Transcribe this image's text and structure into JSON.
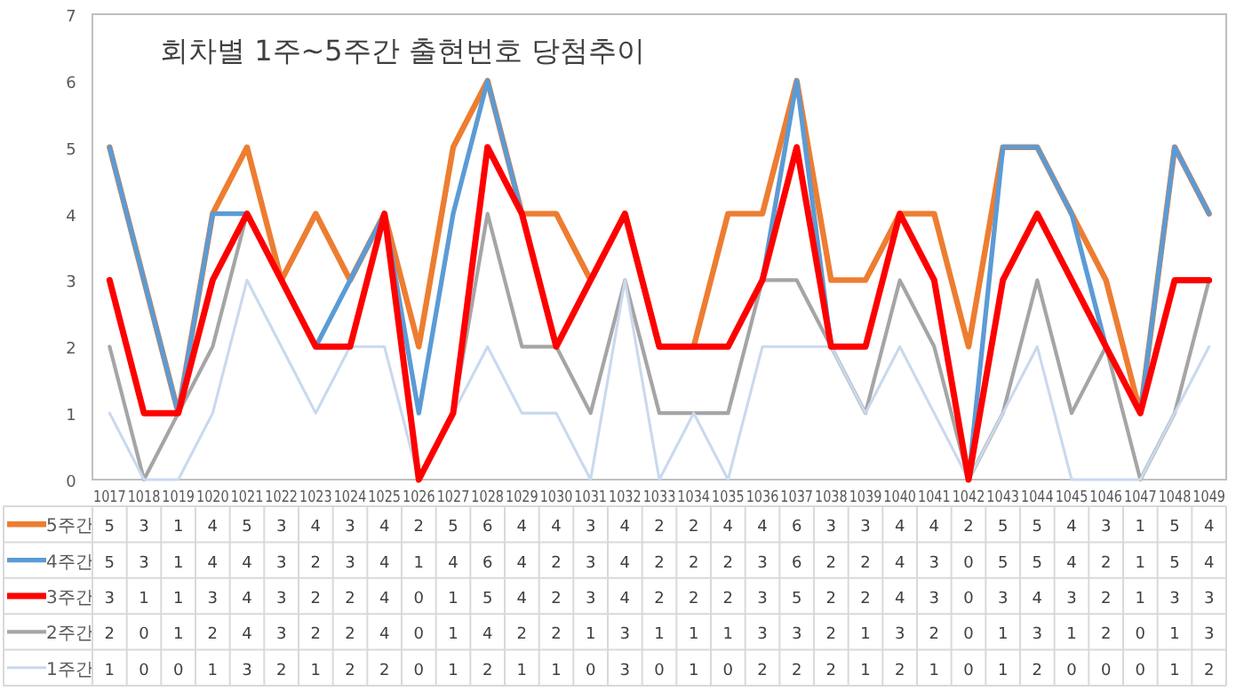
{
  "chart_data": {
    "type": "line",
    "title": "회차별 1주~5주간 출현번호 당첨추이",
    "categories": [
      "1017",
      "1018",
      "1019",
      "1020",
      "1021",
      "1022",
      "1023",
      "1024",
      "1025",
      "1026",
      "1027",
      "1028",
      "1029",
      "1030",
      "1031",
      "1032",
      "1033",
      "1034",
      "1035",
      "1036",
      "1037",
      "1038",
      "1039",
      "1040",
      "1041",
      "1042",
      "1043",
      "1044",
      "1045",
      "1046",
      "1047",
      "1048",
      "1049"
    ],
    "series": [
      {
        "name": "5주간",
        "color": "#ed7d31",
        "values": [
          5,
          3,
          1,
          4,
          5,
          3,
          4,
          3,
          4,
          2,
          5,
          6,
          4,
          4,
          3,
          4,
          2,
          2,
          4,
          4,
          6,
          3,
          3,
          4,
          4,
          2,
          5,
          5,
          4,
          3,
          1,
          5,
          4
        ]
      },
      {
        "name": "4주간",
        "color": "#5b9bd5",
        "values": [
          5,
          3,
          1,
          4,
          4,
          3,
          2,
          3,
          4,
          1,
          4,
          6,
          4,
          2,
          3,
          4,
          2,
          2,
          2,
          3,
          6,
          2,
          2,
          4,
          3,
          0,
          5,
          5,
          4,
          2,
          1,
          5,
          4
        ]
      },
      {
        "name": "3주간",
        "color": "#ff0000",
        "values": [
          3,
          1,
          1,
          3,
          4,
          3,
          2,
          2,
          4,
          0,
          1,
          5,
          4,
          2,
          3,
          4,
          2,
          2,
          2,
          3,
          5,
          2,
          2,
          4,
          3,
          0,
          3,
          4,
          3,
          2,
          1,
          3,
          3
        ]
      },
      {
        "name": "2주간",
        "color": "#a5a5a5",
        "values": [
          2,
          0,
          1,
          2,
          4,
          3,
          2,
          2,
          4,
          0,
          1,
          4,
          2,
          2,
          1,
          3,
          1,
          1,
          1,
          3,
          3,
          2,
          1,
          3,
          2,
          0,
          1,
          3,
          1,
          2,
          0,
          1,
          3
        ]
      },
      {
        "name": "1주간",
        "color": "#c9d9ee",
        "values": [
          1,
          0,
          0,
          1,
          3,
          2,
          1,
          2,
          2,
          0,
          1,
          2,
          1,
          1,
          0,
          3,
          0,
          1,
          0,
          2,
          2,
          2,
          1,
          2,
          1,
          0,
          1,
          2,
          0,
          0,
          0,
          1,
          2
        ]
      }
    ],
    "ylim": [
      0,
      7
    ],
    "yticks": [
      0,
      1,
      2,
      3,
      4,
      5,
      6,
      7
    ],
    "data_labels": true,
    "legend": "bottom",
    "marker": "none",
    "line_style": "solid"
  }
}
